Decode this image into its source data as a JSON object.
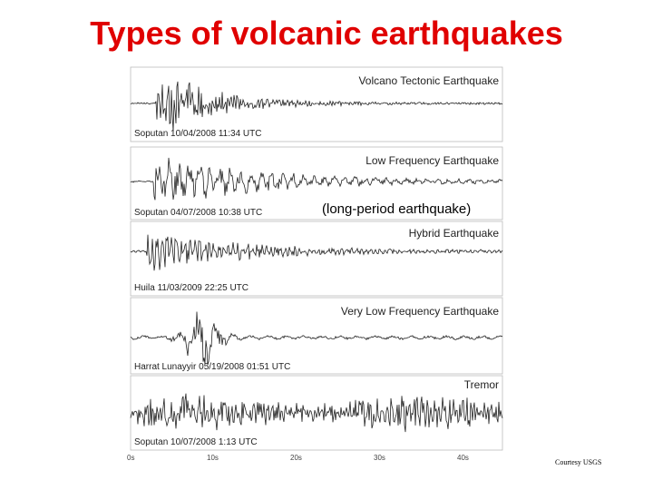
{
  "slide": {
    "title": "Types of volcanic earthquakes",
    "credit": "Courtesy USGS",
    "title_color": "#e00000"
  },
  "figure": {
    "annotation": "(long-period earthquake)",
    "panels": [
      {
        "type": "Volcano Tectonic Earthquake",
        "station": "Soputan 10/04/2008 11:34 UTC"
      },
      {
        "type": "Low Frequency Earthquake",
        "station": "Soputan 04/07/2008 10:38 UTC"
      },
      {
        "type": "Hybrid Earthquake",
        "station": "Huila 11/03/2009 22:25 UTC"
      },
      {
        "type": "Very Low Frequency Earthquake",
        "station": "Harrat Lunayyir 05/19/2008 01:51 UTC"
      },
      {
        "type": "Tremor",
        "station": "Soputan 10/07/2008 1:13 UTC"
      }
    ],
    "time_axis": [
      "0s",
      "10s",
      "20s",
      "30s",
      "40s"
    ]
  }
}
